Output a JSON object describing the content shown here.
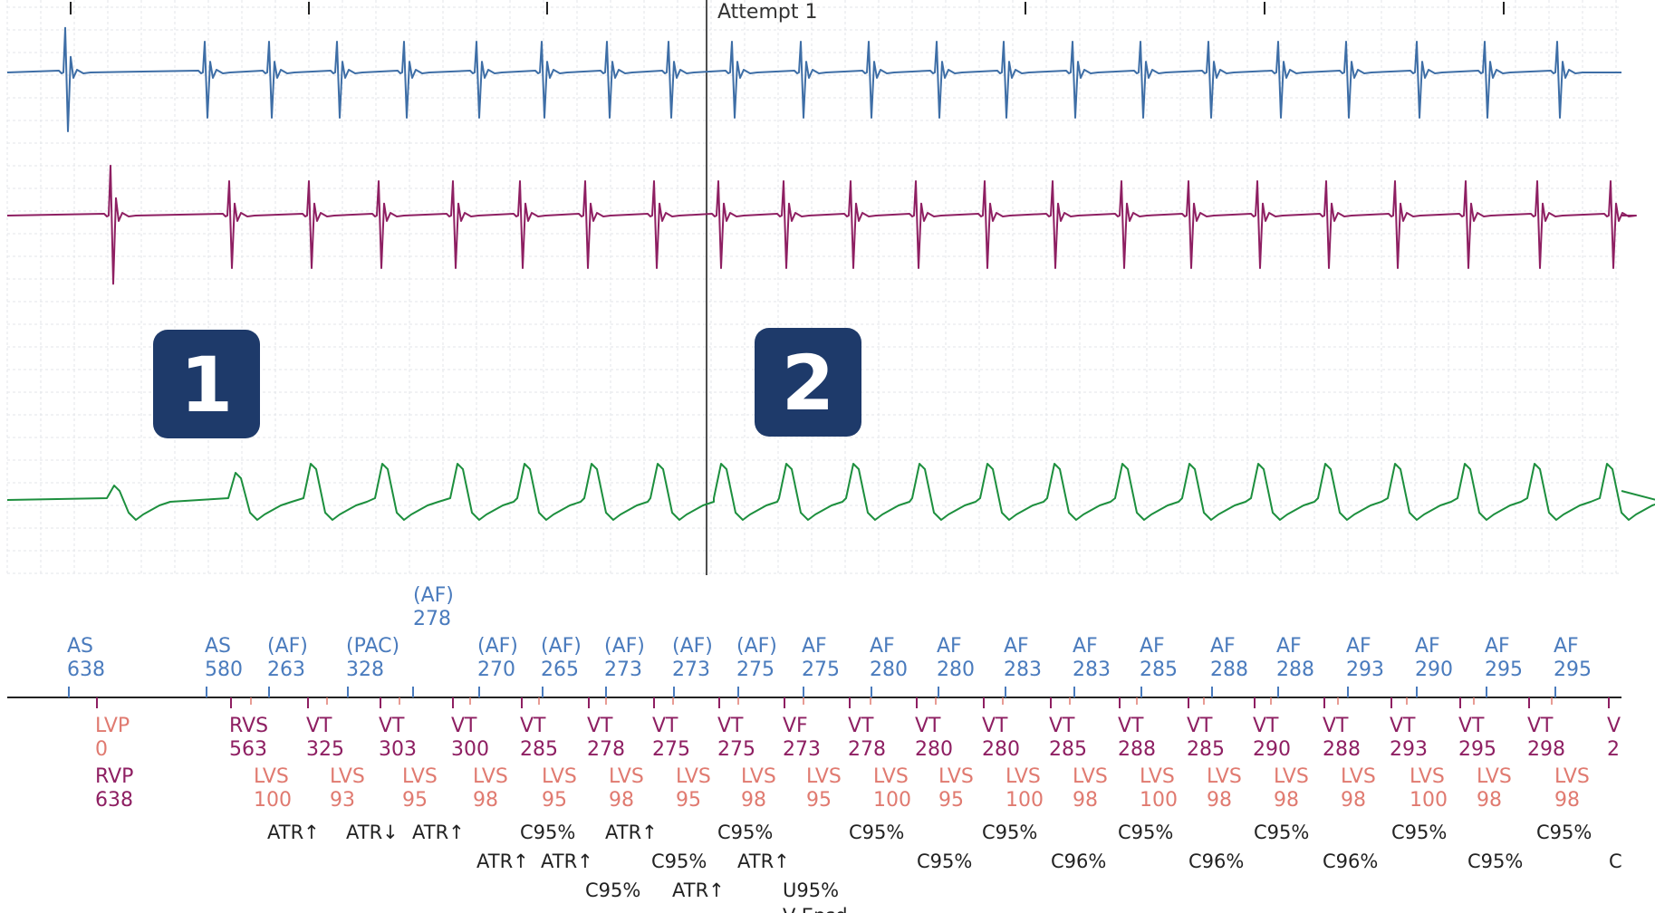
{
  "chart_data": {
    "type": "line",
    "title": "Attempt 1",
    "colors": {
      "atrial_egm": "#3e6ea6",
      "ventricular_egm": "#8e1f62",
      "shock_egm": "#1d8f3e",
      "atrial_markers": "#4a7bbd",
      "ventricular_markers": "#8e1f62",
      "lv_markers": "#e07a70",
      "event_text": "#222222",
      "grid": "#e3e6ea",
      "badge": "#1e3a6a"
    },
    "badges": [
      "1",
      "2"
    ],
    "atrial_markers": [
      {
        "label": "AS",
        "value": "638"
      },
      {
        "label": "AS",
        "value": "580"
      },
      {
        "label": "(AF)",
        "value": "263"
      },
      {
        "label": "(PAC)",
        "value": "328"
      },
      {
        "label": "(AF)",
        "value": "278"
      },
      {
        "label": "(AF)",
        "value": "270"
      },
      {
        "label": "(AF)",
        "value": "265"
      },
      {
        "label": "(AF)",
        "value": "273"
      },
      {
        "label": "(AF)",
        "value": "273"
      },
      {
        "label": "(AF)",
        "value": "275"
      },
      {
        "label": "AF",
        "value": "275"
      },
      {
        "label": "AF",
        "value": "280"
      },
      {
        "label": "AF",
        "value": "280"
      },
      {
        "label": "AF",
        "value": "283"
      },
      {
        "label": "AF",
        "value": "283"
      },
      {
        "label": "AF",
        "value": "285"
      },
      {
        "label": "AF",
        "value": "288"
      },
      {
        "label": "AF",
        "value": "288"
      },
      {
        "label": "AF",
        "value": "293"
      },
      {
        "label": "AF",
        "value": "290"
      },
      {
        "label": "AF",
        "value": "295"
      },
      {
        "label": "AF",
        "value": "295"
      }
    ],
    "ventricular_markers": [
      {
        "label": "LVP",
        "value": "0"
      },
      {
        "label": "RVP",
        "value": "638"
      },
      {
        "label": "RVS",
        "value": "563"
      },
      {
        "label": "VT",
        "value": "325"
      },
      {
        "label": "VT",
        "value": "303"
      },
      {
        "label": "VT",
        "value": "300"
      },
      {
        "label": "VT",
        "value": "285"
      },
      {
        "label": "VT",
        "value": "278"
      },
      {
        "label": "VT",
        "value": "275"
      },
      {
        "label": "VT",
        "value": "275"
      },
      {
        "label": "VF",
        "value": "273"
      },
      {
        "label": "VT",
        "value": "278"
      },
      {
        "label": "VT",
        "value": "280"
      },
      {
        "label": "VT",
        "value": "280"
      },
      {
        "label": "VT",
        "value": "285"
      },
      {
        "label": "VT",
        "value": "288"
      },
      {
        "label": "VT",
        "value": "285"
      },
      {
        "label": "VT",
        "value": "290"
      },
      {
        "label": "VT",
        "value": "288"
      },
      {
        "label": "VT",
        "value": "293"
      },
      {
        "label": "VT",
        "value": "295"
      },
      {
        "label": "VT",
        "value": "298"
      },
      {
        "label": "V",
        "value": "2"
      }
    ],
    "lv_sense_markers": [
      {
        "label": "LVS",
        "value": "100"
      },
      {
        "label": "LVS",
        "value": "93"
      },
      {
        "label": "LVS",
        "value": "95"
      },
      {
        "label": "LVS",
        "value": "98"
      },
      {
        "label": "LVS",
        "value": "95"
      },
      {
        "label": "LVS",
        "value": "98"
      },
      {
        "label": "LVS",
        "value": "95"
      },
      {
        "label": "LVS",
        "value": "98"
      },
      {
        "label": "LVS",
        "value": "95"
      },
      {
        "label": "LVS",
        "value": "100"
      },
      {
        "label": "LVS",
        "value": "95"
      },
      {
        "label": "LVS",
        "value": "100"
      },
      {
        "label": "LVS",
        "value": "98"
      },
      {
        "label": "LVS",
        "value": "100"
      },
      {
        "label": "LVS",
        "value": "98"
      },
      {
        "label": "LVS",
        "value": "98"
      },
      {
        "label": "LVS",
        "value": "98"
      },
      {
        "label": "LVS",
        "value": "100"
      },
      {
        "label": "LVS",
        "value": "98"
      },
      {
        "label": "LVS",
        "value": "98"
      }
    ],
    "event_annotations": [
      "ATR↑",
      "ATR↓",
      "ATR↑",
      "C95%",
      "ATR↑",
      "C95%",
      "C95%",
      "C95%",
      "C95%",
      "C95%",
      "C95%",
      "C95%",
      "ATR↑",
      "ATR↑",
      "C95%",
      "ATR↑",
      "C95%",
      "C96%",
      "C96%",
      "C96%",
      "C95%",
      "C",
      "C95%",
      "ATR↑",
      "U95%",
      "V-Epsd"
    ]
  }
}
